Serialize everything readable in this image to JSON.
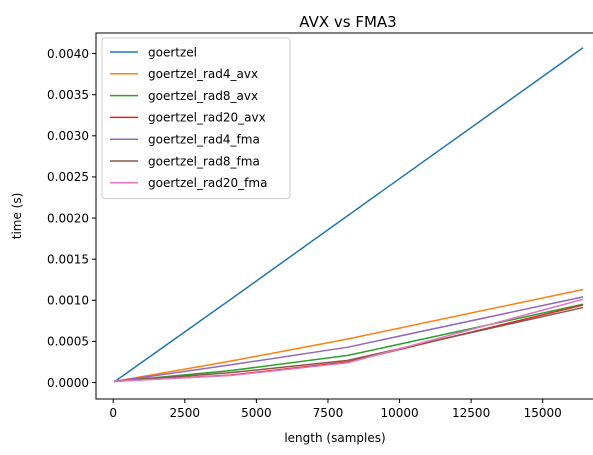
{
  "chart_data": {
    "type": "line",
    "title": "AVX vs FMA3",
    "xlabel": "length (samples)",
    "ylabel": "time (s)",
    "xlim": [
      -600,
      17000
    ],
    "ylim": [
      -0.0002,
      0.00425
    ],
    "xticks": [
      0,
      2500,
      5000,
      7500,
      10000,
      12500,
      15000
    ],
    "yticks": [
      0.0,
      0.0005,
      0.001,
      0.0015,
      0.002,
      0.0025,
      0.003,
      0.0035,
      0.004
    ],
    "xtick_labels": [
      "0",
      "2500",
      "5000",
      "7500",
      "10000",
      "12500",
      "15000"
    ],
    "ytick_labels": [
      "0.0000",
      "0.0005",
      "0.0010",
      "0.0015",
      "0.0020",
      "0.0025",
      "0.0030",
      "0.0035",
      "0.0040"
    ],
    "x": [
      64,
      4096,
      8192,
      16384
    ],
    "grid": false,
    "legend_position": "top-left",
    "series": [
      {
        "name": "goertzel",
        "color": "#1f77b4",
        "values": [
          1.5e-05,
          0.00101,
          0.00203,
          0.004065
        ]
      },
      {
        "name": "goertzel_rad4_avx",
        "color": "#ff7f0e",
        "values": [
          1.5e-05,
          0.00026,
          0.00053,
          0.00113
        ]
      },
      {
        "name": "goertzel_rad8_avx",
        "color": "#2ca02c",
        "values": [
          1.5e-05,
          0.000145,
          0.00033,
          0.00095
        ]
      },
      {
        "name": "goertzel_rad20_avx",
        "color": "#d62728",
        "values": [
          1.5e-05,
          9e-05,
          0.00025,
          0.00094
        ]
      },
      {
        "name": "goertzel_rad4_fma",
        "color": "#9467bd",
        "values": [
          1.5e-05,
          0.000215,
          0.00043,
          0.00104
        ]
      },
      {
        "name": "goertzel_rad8_fma",
        "color": "#8c564b",
        "values": [
          1.5e-05,
          0.00012,
          0.00027,
          0.00091
        ]
      },
      {
        "name": "goertzel_rad20_fma",
        "color": "#e377c2",
        "values": [
          1.5e-05,
          8.5e-05,
          0.00024,
          0.00101
        ]
      }
    ]
  }
}
